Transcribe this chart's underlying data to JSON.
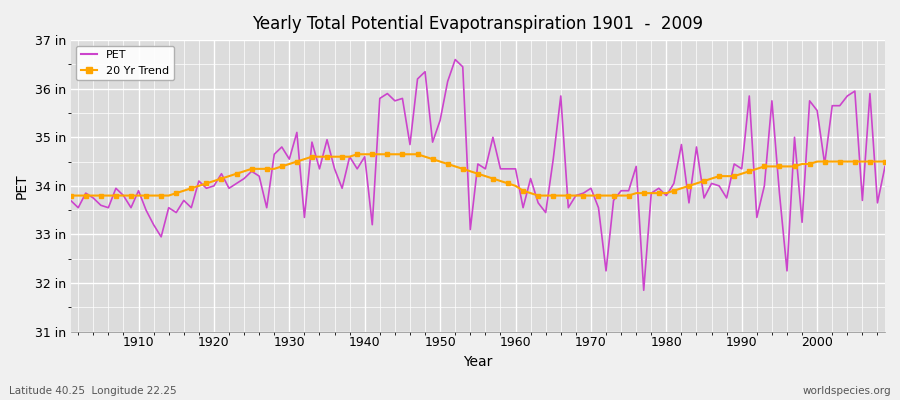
{
  "title": "Yearly Total Potential Evapotranspiration 1901  -  2009",
  "xlabel": "Year",
  "ylabel": "PET",
  "subtitle_left": "Latitude 40.25  Longitude 22.25",
  "subtitle_right": "worldspecies.org",
  "ylim": [
    31,
    37
  ],
  "yticks": [
    31,
    32,
    33,
    34,
    35,
    36,
    37
  ],
  "ytick_labels": [
    "31 in",
    "32 in",
    "33 in",
    "34 in",
    "35 in",
    "36 in",
    "37 in"
  ],
  "xlim": [
    1901,
    2009
  ],
  "pet_color": "#CC44CC",
  "trend_color": "#FFA500",
  "plot_bg_color": "#DCDCDC",
  "fig_bg_color": "#F0F0F0",
  "grid_color": "#FFFFFF",
  "legend_labels": [
    "PET",
    "20 Yr Trend"
  ],
  "pet_data": [
    [
      1901,
      33.7
    ],
    [
      1902,
      33.55
    ],
    [
      1903,
      33.85
    ],
    [
      1904,
      33.75
    ],
    [
      1905,
      33.6
    ],
    [
      1906,
      33.55
    ],
    [
      1907,
      33.95
    ],
    [
      1908,
      33.8
    ],
    [
      1909,
      33.55
    ],
    [
      1910,
      33.9
    ],
    [
      1911,
      33.5
    ],
    [
      1912,
      33.2
    ],
    [
      1913,
      32.95
    ],
    [
      1914,
      33.55
    ],
    [
      1915,
      33.45
    ],
    [
      1916,
      33.7
    ],
    [
      1917,
      33.55
    ],
    [
      1918,
      34.1
    ],
    [
      1919,
      33.95
    ],
    [
      1920,
      34.0
    ],
    [
      1921,
      34.25
    ],
    [
      1922,
      33.95
    ],
    [
      1923,
      34.05
    ],
    [
      1924,
      34.15
    ],
    [
      1925,
      34.3
    ],
    [
      1926,
      34.2
    ],
    [
      1927,
      33.55
    ],
    [
      1928,
      34.65
    ],
    [
      1929,
      34.8
    ],
    [
      1930,
      34.55
    ],
    [
      1931,
      35.1
    ],
    [
      1932,
      33.35
    ],
    [
      1933,
      34.9
    ],
    [
      1934,
      34.35
    ],
    [
      1935,
      34.95
    ],
    [
      1936,
      34.35
    ],
    [
      1937,
      33.95
    ],
    [
      1938,
      34.6
    ],
    [
      1939,
      34.35
    ],
    [
      1940,
      34.6
    ],
    [
      1941,
      33.2
    ],
    [
      1942,
      35.8
    ],
    [
      1943,
      35.9
    ],
    [
      1944,
      35.75
    ],
    [
      1945,
      35.8
    ],
    [
      1946,
      34.85
    ],
    [
      1947,
      36.2
    ],
    [
      1948,
      36.35
    ],
    [
      1949,
      34.9
    ],
    [
      1950,
      35.35
    ],
    [
      1951,
      36.15
    ],
    [
      1952,
      36.6
    ],
    [
      1953,
      36.45
    ],
    [
      1954,
      33.1
    ],
    [
      1955,
      34.45
    ],
    [
      1956,
      34.35
    ],
    [
      1957,
      35.0
    ],
    [
      1958,
      34.35
    ],
    [
      1959,
      34.35
    ],
    [
      1960,
      34.35
    ],
    [
      1961,
      33.55
    ],
    [
      1962,
      34.15
    ],
    [
      1963,
      33.65
    ],
    [
      1964,
      33.45
    ],
    [
      1965,
      34.55
    ],
    [
      1966,
      35.85
    ],
    [
      1967,
      33.55
    ],
    [
      1968,
      33.8
    ],
    [
      1969,
      33.85
    ],
    [
      1970,
      33.95
    ],
    [
      1971,
      33.55
    ],
    [
      1972,
      32.25
    ],
    [
      1973,
      33.7
    ],
    [
      1974,
      33.9
    ],
    [
      1975,
      33.9
    ],
    [
      1976,
      34.4
    ],
    [
      1977,
      31.85
    ],
    [
      1978,
      33.85
    ],
    [
      1979,
      33.95
    ],
    [
      1980,
      33.8
    ],
    [
      1981,
      34.05
    ],
    [
      1982,
      34.85
    ],
    [
      1983,
      33.65
    ],
    [
      1984,
      34.8
    ],
    [
      1985,
      33.75
    ],
    [
      1986,
      34.05
    ],
    [
      1987,
      34.0
    ],
    [
      1988,
      33.75
    ],
    [
      1989,
      34.45
    ],
    [
      1990,
      34.35
    ],
    [
      1991,
      35.85
    ],
    [
      1992,
      33.35
    ],
    [
      1993,
      34.0
    ],
    [
      1994,
      35.75
    ],
    [
      1995,
      33.85
    ],
    [
      1996,
      32.25
    ],
    [
      1997,
      35.0
    ],
    [
      1998,
      33.25
    ],
    [
      1999,
      35.75
    ],
    [
      2000,
      35.55
    ],
    [
      2001,
      34.45
    ],
    [
      2002,
      35.65
    ],
    [
      2003,
      35.65
    ],
    [
      2004,
      35.85
    ],
    [
      2005,
      35.95
    ],
    [
      2006,
      33.7
    ],
    [
      2007,
      35.9
    ],
    [
      2008,
      33.65
    ],
    [
      2009,
      34.4
    ]
  ],
  "trend_data": [
    [
      1901,
      33.8
    ],
    [
      1902,
      33.8
    ],
    [
      1903,
      33.8
    ],
    [
      1904,
      33.8
    ],
    [
      1905,
      33.8
    ],
    [
      1906,
      33.8
    ],
    [
      1907,
      33.8
    ],
    [
      1908,
      33.8
    ],
    [
      1909,
      33.8
    ],
    [
      1910,
      33.8
    ],
    [
      1911,
      33.8
    ],
    [
      1912,
      33.8
    ],
    [
      1913,
      33.8
    ],
    [
      1914,
      33.8
    ],
    [
      1915,
      33.85
    ],
    [
      1916,
      33.9
    ],
    [
      1917,
      33.95
    ],
    [
      1918,
      34.0
    ],
    [
      1919,
      34.05
    ],
    [
      1920,
      34.1
    ],
    [
      1921,
      34.15
    ],
    [
      1922,
      34.2
    ],
    [
      1923,
      34.25
    ],
    [
      1924,
      34.3
    ],
    [
      1925,
      34.35
    ],
    [
      1926,
      34.35
    ],
    [
      1927,
      34.35
    ],
    [
      1928,
      34.35
    ],
    [
      1929,
      34.4
    ],
    [
      1930,
      34.45
    ],
    [
      1931,
      34.5
    ],
    [
      1932,
      34.55
    ],
    [
      1933,
      34.6
    ],
    [
      1934,
      34.6
    ],
    [
      1935,
      34.6
    ],
    [
      1936,
      34.6
    ],
    [
      1937,
      34.6
    ],
    [
      1938,
      34.6
    ],
    [
      1939,
      34.65
    ],
    [
      1940,
      34.65
    ],
    [
      1941,
      34.65
    ],
    [
      1942,
      34.65
    ],
    [
      1943,
      34.65
    ],
    [
      1944,
      34.65
    ],
    [
      1945,
      34.65
    ],
    [
      1946,
      34.65
    ],
    [
      1947,
      34.65
    ],
    [
      1948,
      34.6
    ],
    [
      1949,
      34.55
    ],
    [
      1950,
      34.5
    ],
    [
      1951,
      34.45
    ],
    [
      1952,
      34.4
    ],
    [
      1953,
      34.35
    ],
    [
      1954,
      34.3
    ],
    [
      1955,
      34.25
    ],
    [
      1956,
      34.2
    ],
    [
      1957,
      34.15
    ],
    [
      1958,
      34.1
    ],
    [
      1959,
      34.05
    ],
    [
      1960,
      34.0
    ],
    [
      1961,
      33.9
    ],
    [
      1962,
      33.85
    ],
    [
      1963,
      33.8
    ],
    [
      1964,
      33.8
    ],
    [
      1965,
      33.8
    ],
    [
      1966,
      33.8
    ],
    [
      1967,
      33.8
    ],
    [
      1968,
      33.8
    ],
    [
      1969,
      33.8
    ],
    [
      1970,
      33.8
    ],
    [
      1971,
      33.8
    ],
    [
      1972,
      33.8
    ],
    [
      1973,
      33.8
    ],
    [
      1974,
      33.8
    ],
    [
      1975,
      33.8
    ],
    [
      1976,
      33.85
    ],
    [
      1977,
      33.85
    ],
    [
      1978,
      33.85
    ],
    [
      1979,
      33.85
    ],
    [
      1980,
      33.85
    ],
    [
      1981,
      33.9
    ],
    [
      1982,
      33.95
    ],
    [
      1983,
      34.0
    ],
    [
      1984,
      34.05
    ],
    [
      1985,
      34.1
    ],
    [
      1986,
      34.15
    ],
    [
      1987,
      34.2
    ],
    [
      1988,
      34.2
    ],
    [
      1989,
      34.2
    ],
    [
      1990,
      34.25
    ],
    [
      1991,
      34.3
    ],
    [
      1992,
      34.35
    ],
    [
      1993,
      34.4
    ],
    [
      1994,
      34.4
    ],
    [
      1995,
      34.4
    ],
    [
      1996,
      34.4
    ],
    [
      1997,
      34.4
    ],
    [
      1998,
      34.45
    ],
    [
      1999,
      34.45
    ],
    [
      2000,
      34.5
    ],
    [
      2001,
      34.5
    ],
    [
      2002,
      34.5
    ],
    [
      2003,
      34.5
    ],
    [
      2004,
      34.5
    ],
    [
      2005,
      34.5
    ],
    [
      2006,
      34.5
    ],
    [
      2007,
      34.5
    ],
    [
      2008,
      34.5
    ],
    [
      2009,
      34.5
    ]
  ]
}
